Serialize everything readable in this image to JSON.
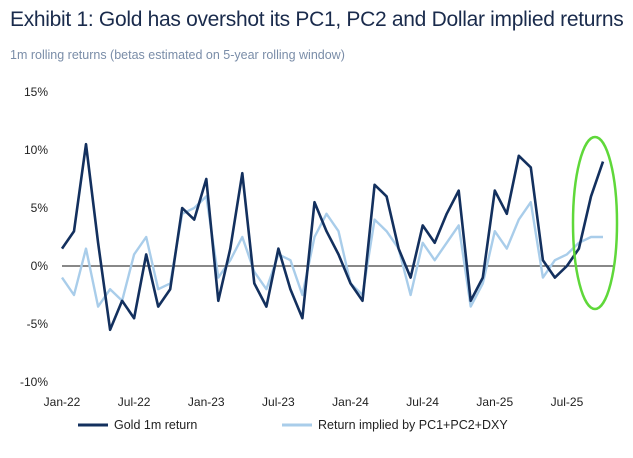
{
  "title": "Exhibit 1: Gold has overshot its PC1, PC2 and Dollar implied returns",
  "subtitle": "1m rolling returns (betas estimated on 5-year rolling window)",
  "colors": {
    "gold": "#13305e",
    "implied": "#a9cdea",
    "highlight": "#5fd83a",
    "zero_line": "#111111"
  },
  "chart_data": {
    "type": "line",
    "title": "Exhibit 1: Gold has overshot its PC1, PC2 and Dollar implied returns",
    "subtitle": "1m rolling returns (betas estimated on 5-year rolling window)",
    "ylim": [
      -10,
      15
    ],
    "yticks": [
      "15%",
      "10%",
      "5%",
      "0%",
      "-5%",
      "-10%"
    ],
    "ytick_values": [
      15,
      10,
      5,
      0,
      -5,
      -10
    ],
    "xtick_labels": [
      "Jan-22",
      "Jul-22",
      "Jan-23",
      "Jul-23",
      "Jan-24",
      "Jul-24",
      "Jan-25",
      "Jul-25"
    ],
    "xtick_dates": [
      "2022-01",
      "2022-07",
      "2023-01",
      "2023-07",
      "2024-01",
      "2024-07",
      "2025-01",
      "2025-07"
    ],
    "xlim": [
      "2022-01",
      "2025-11"
    ],
    "legend_position": "bottom",
    "annotation": "green ellipse highlighting latest gold spike",
    "series": [
      {
        "name": "Gold 1m return",
        "dates": [
          "2022-01",
          "2022-02",
          "2022-03",
          "2022-04",
          "2022-05",
          "2022-06",
          "2022-07",
          "2022-08",
          "2022-09",
          "2022-10",
          "2022-11",
          "2022-12",
          "2023-01",
          "2023-02",
          "2023-03",
          "2023-04",
          "2023-05",
          "2023-06",
          "2023-07",
          "2023-08",
          "2023-09",
          "2023-10",
          "2023-11",
          "2023-12",
          "2024-01",
          "2024-02",
          "2024-03",
          "2024-04",
          "2024-05",
          "2024-06",
          "2024-07",
          "2024-08",
          "2024-09",
          "2024-10",
          "2024-11",
          "2024-12",
          "2025-01",
          "2025-02",
          "2025-03",
          "2025-04",
          "2025-05",
          "2025-06",
          "2025-07",
          "2025-08",
          "2025-09",
          "2025-10"
        ],
        "values": [
          1.5,
          3.0,
          10.5,
          2.0,
          -5.5,
          -3.0,
          -4.5,
          1.0,
          -3.5,
          -2.0,
          5.0,
          4.0,
          7.5,
          -3.0,
          1.5,
          8.0,
          -1.5,
          -3.5,
          1.5,
          -2.0,
          -4.5,
          5.5,
          3.0,
          1.0,
          -1.5,
          -3.0,
          7.0,
          6.0,
          1.5,
          -1.0,
          3.5,
          2.0,
          4.5,
          6.5,
          -3.0,
          -1.0,
          6.5,
          4.5,
          9.5,
          8.5,
          0.5,
          -1.0,
          0.0,
          1.5,
          6.0,
          9.0
        ]
      },
      {
        "name": "Return implied by PC1+PC2+DXY",
        "dates": [
          "2022-01",
          "2022-02",
          "2022-03",
          "2022-04",
          "2022-05",
          "2022-06",
          "2022-07",
          "2022-08",
          "2022-09",
          "2022-10",
          "2022-11",
          "2022-12",
          "2023-01",
          "2023-02",
          "2023-03",
          "2023-04",
          "2023-05",
          "2023-06",
          "2023-07",
          "2023-08",
          "2023-09",
          "2023-10",
          "2023-11",
          "2023-12",
          "2024-01",
          "2024-02",
          "2024-03",
          "2024-04",
          "2024-05",
          "2024-06",
          "2024-07",
          "2024-08",
          "2024-09",
          "2024-10",
          "2024-11",
          "2024-12",
          "2025-01",
          "2025-02",
          "2025-03",
          "2025-04",
          "2025-05",
          "2025-06",
          "2025-07",
          "2025-08",
          "2025-09",
          "2025-10"
        ],
        "values": [
          -1.0,
          -2.5,
          1.5,
          -3.5,
          -2.0,
          -3.0,
          1.0,
          2.5,
          -2.0,
          -1.5,
          4.5,
          5.0,
          6.0,
          -1.0,
          0.5,
          2.5,
          -0.5,
          -2.0,
          1.0,
          0.5,
          -2.5,
          2.5,
          4.5,
          3.0,
          -1.5,
          -2.5,
          4.0,
          3.0,
          1.5,
          -2.5,
          2.0,
          0.5,
          2.0,
          3.5,
          -3.5,
          -1.5,
          3.0,
          1.5,
          4.0,
          5.5,
          -1.0,
          0.5,
          1.0,
          2.0,
          2.5,
          2.5
        ]
      }
    ]
  }
}
